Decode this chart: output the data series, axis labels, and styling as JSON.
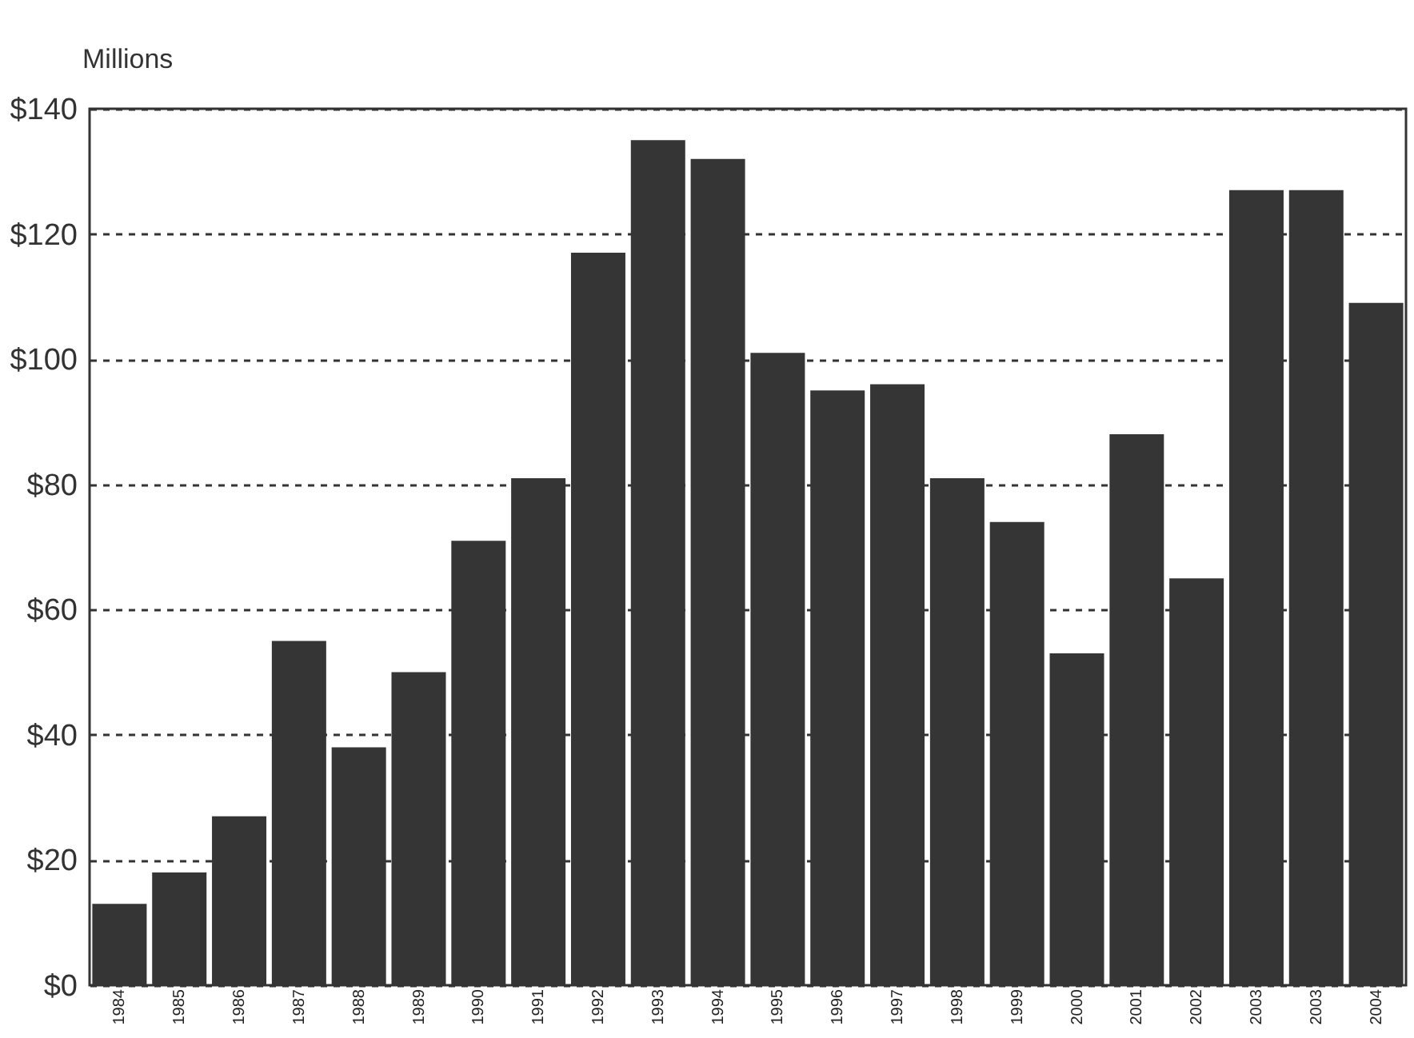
{
  "chart_data": {
    "type": "bar",
    "ylabel": "Millions",
    "categories": [
      "1984",
      "1985",
      "1986",
      "1987",
      "1988",
      "1989",
      "1990",
      "1991",
      "1992",
      "1993",
      "1994",
      "1995",
      "1996",
      "1997",
      "1998",
      "1999",
      "2000",
      "2001",
      "2002",
      "2003",
      "2003",
      "2004"
    ],
    "values": [
      13,
      18,
      27,
      55,
      38,
      50,
      71,
      81,
      117,
      135,
      132,
      101,
      95,
      96,
      81,
      74,
      53,
      88,
      65,
      127,
      127,
      109
    ],
    "color": "#353535",
    "ylim": [
      0,
      140
    ],
    "yticks": [
      {
        "value": 0,
        "label": "$0"
      },
      {
        "value": 20,
        "label": "$20"
      },
      {
        "value": 40,
        "label": "$40"
      },
      {
        "value": 60,
        "label": "$60"
      },
      {
        "value": 80,
        "label": "$80"
      },
      {
        "value": 100,
        "label": "$100"
      },
      {
        "value": 120,
        "label": "$120"
      },
      {
        "value": 140,
        "label": "$140"
      }
    ],
    "grid": "y",
    "line_style": "dashed"
  }
}
